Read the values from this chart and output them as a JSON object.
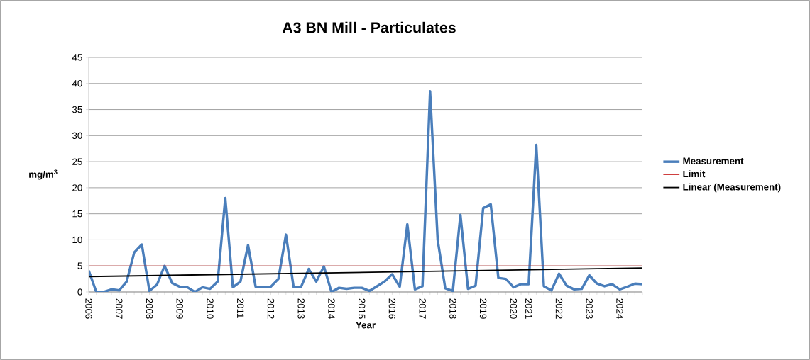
{
  "chart_data": {
    "type": "line",
    "title": "A3 BN Mill - Particulates",
    "xlabel": "Year",
    "ylabel": "mg/m$^{3}$",
    "categories": [
      "2006",
      null,
      null,
      null,
      "2007",
      null,
      null,
      null,
      "2008",
      null,
      null,
      null,
      "2009",
      null,
      null,
      null,
      "2010",
      null,
      null,
      null,
      "2011",
      null,
      null,
      null,
      "2012",
      null,
      null,
      null,
      "2013",
      null,
      null,
      null,
      "2014",
      null,
      null,
      null,
      "2015",
      null,
      null,
      null,
      "2016",
      null,
      null,
      null,
      "2017",
      null,
      null,
      null,
      "2018",
      null,
      null,
      null,
      "2019",
      null,
      null,
      null,
      "2020",
      null,
      "2021",
      null,
      null,
      null,
      "2022",
      null,
      null,
      null,
      "2023",
      null,
      null,
      null,
      "2024",
      null,
      null,
      null
    ],
    "series": [
      {
        "name": "Measurement",
        "color": "#4a7ebb",
        "values": [
          4.1,
          0,
          0,
          0.5,
          0.3,
          2,
          7.6,
          9.1,
          0.2,
          1.4,
          5,
          1.7,
          1,
          0.9,
          0,
          0.9,
          0.6,
          2,
          18,
          0.9,
          2,
          9,
          1,
          1,
          1,
          2.5,
          11,
          1,
          1,
          4.4,
          2,
          4.9,
          0,
          0.8,
          0.6,
          0.8,
          0.8,
          0.2,
          1.1,
          2,
          3.4,
          1,
          13,
          0.5,
          1.1,
          38.5,
          10,
          0.7,
          0.2,
          14.8,
          0.6,
          1.2,
          16.1,
          16.8,
          2.7,
          2.5,
          0.9,
          1.5,
          1.5,
          28.2,
          1.1,
          0.3,
          3.5,
          1.2,
          0.5,
          0.6,
          3.2,
          1.6,
          1.1,
          1.5,
          0.5,
          1,
          1.6,
          1.5
        ]
      },
      {
        "name": "Limit",
        "color": "#c00000",
        "values": [
          5,
          5,
          5,
          5,
          5,
          5,
          5,
          5,
          5,
          5,
          5,
          5,
          5,
          5,
          5,
          5,
          5,
          5,
          5,
          5,
          5,
          5,
          5,
          5,
          5,
          5,
          5,
          5,
          5,
          5,
          5,
          5,
          5,
          5,
          5,
          5,
          5,
          5,
          5,
          5,
          5,
          5,
          5,
          5,
          5,
          5,
          5,
          5,
          5,
          5,
          5,
          5,
          5,
          5,
          5,
          5,
          5,
          5,
          5,
          5,
          5,
          5,
          5,
          5,
          5,
          5,
          5,
          5,
          5,
          5,
          5,
          5,
          5,
          5
        ]
      },
      {
        "name": "Linear (Measurement)",
        "color": "#000000",
        "values": [
          2.95,
          null,
          null,
          null,
          null,
          null,
          null,
          null,
          null,
          null,
          null,
          null,
          null,
          null,
          null,
          null,
          null,
          null,
          null,
          null,
          null,
          null,
          null,
          null,
          null,
          null,
          null,
          null,
          null,
          null,
          null,
          null,
          null,
          null,
          null,
          null,
          null,
          null,
          null,
          null,
          null,
          null,
          null,
          null,
          null,
          null,
          null,
          null,
          null,
          null,
          null,
          null,
          null,
          null,
          null,
          null,
          null,
          null,
          null,
          null,
          null,
          null,
          null,
          null,
          null,
          null,
          null,
          null,
          null,
          null,
          null,
          null,
          null,
          4.6
        ]
      }
    ],
    "ylim": [
      0,
      45
    ],
    "yticks": [
      0,
      5,
      10,
      15,
      20,
      25,
      30,
      35,
      40,
      45
    ],
    "grid": "y",
    "legend": "right",
    "marker": "none",
    "line_style": "solid"
  }
}
